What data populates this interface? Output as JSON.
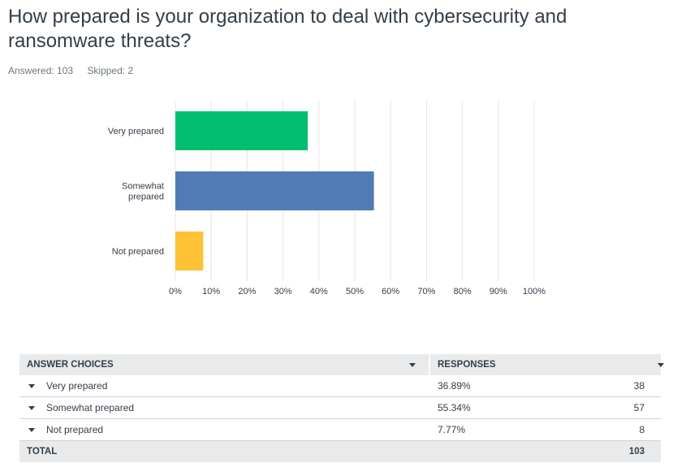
{
  "question": {
    "title": "How prepared is your organization to deal with cybersecurity and ransomware threats?",
    "answered": "Answered: 103",
    "skipped": "Skipped: 2"
  },
  "chart_data": {
    "type": "bar",
    "orientation": "horizontal",
    "categories": [
      "Very prepared",
      "Somewhat prepared",
      "Not prepared"
    ],
    "category_lines": [
      [
        "Very prepared"
      ],
      [
        "Somewhat",
        "prepared"
      ],
      [
        "Not prepared"
      ]
    ],
    "values": [
      36.89,
      55.34,
      7.77
    ],
    "colors": [
      "#00bf6f",
      "#507cb6",
      "#fdc235"
    ],
    "xlim": [
      0,
      100
    ],
    "xticks": [
      "0%",
      "10%",
      "20%",
      "30%",
      "40%",
      "50%",
      "60%",
      "70%",
      "80%",
      "90%",
      "100%"
    ],
    "grid": true
  },
  "table": {
    "headers": {
      "choices": "ANSWER CHOICES",
      "responses": "RESPONSES"
    },
    "rows": [
      {
        "choice": "Very prepared",
        "percent": "36.89%",
        "count": "38"
      },
      {
        "choice": "Somewhat prepared",
        "percent": "55.34%",
        "count": "57"
      },
      {
        "choice": "Not prepared",
        "percent": "7.77%",
        "count": "8"
      }
    ],
    "total_label": "TOTAL",
    "total_value": "103"
  }
}
